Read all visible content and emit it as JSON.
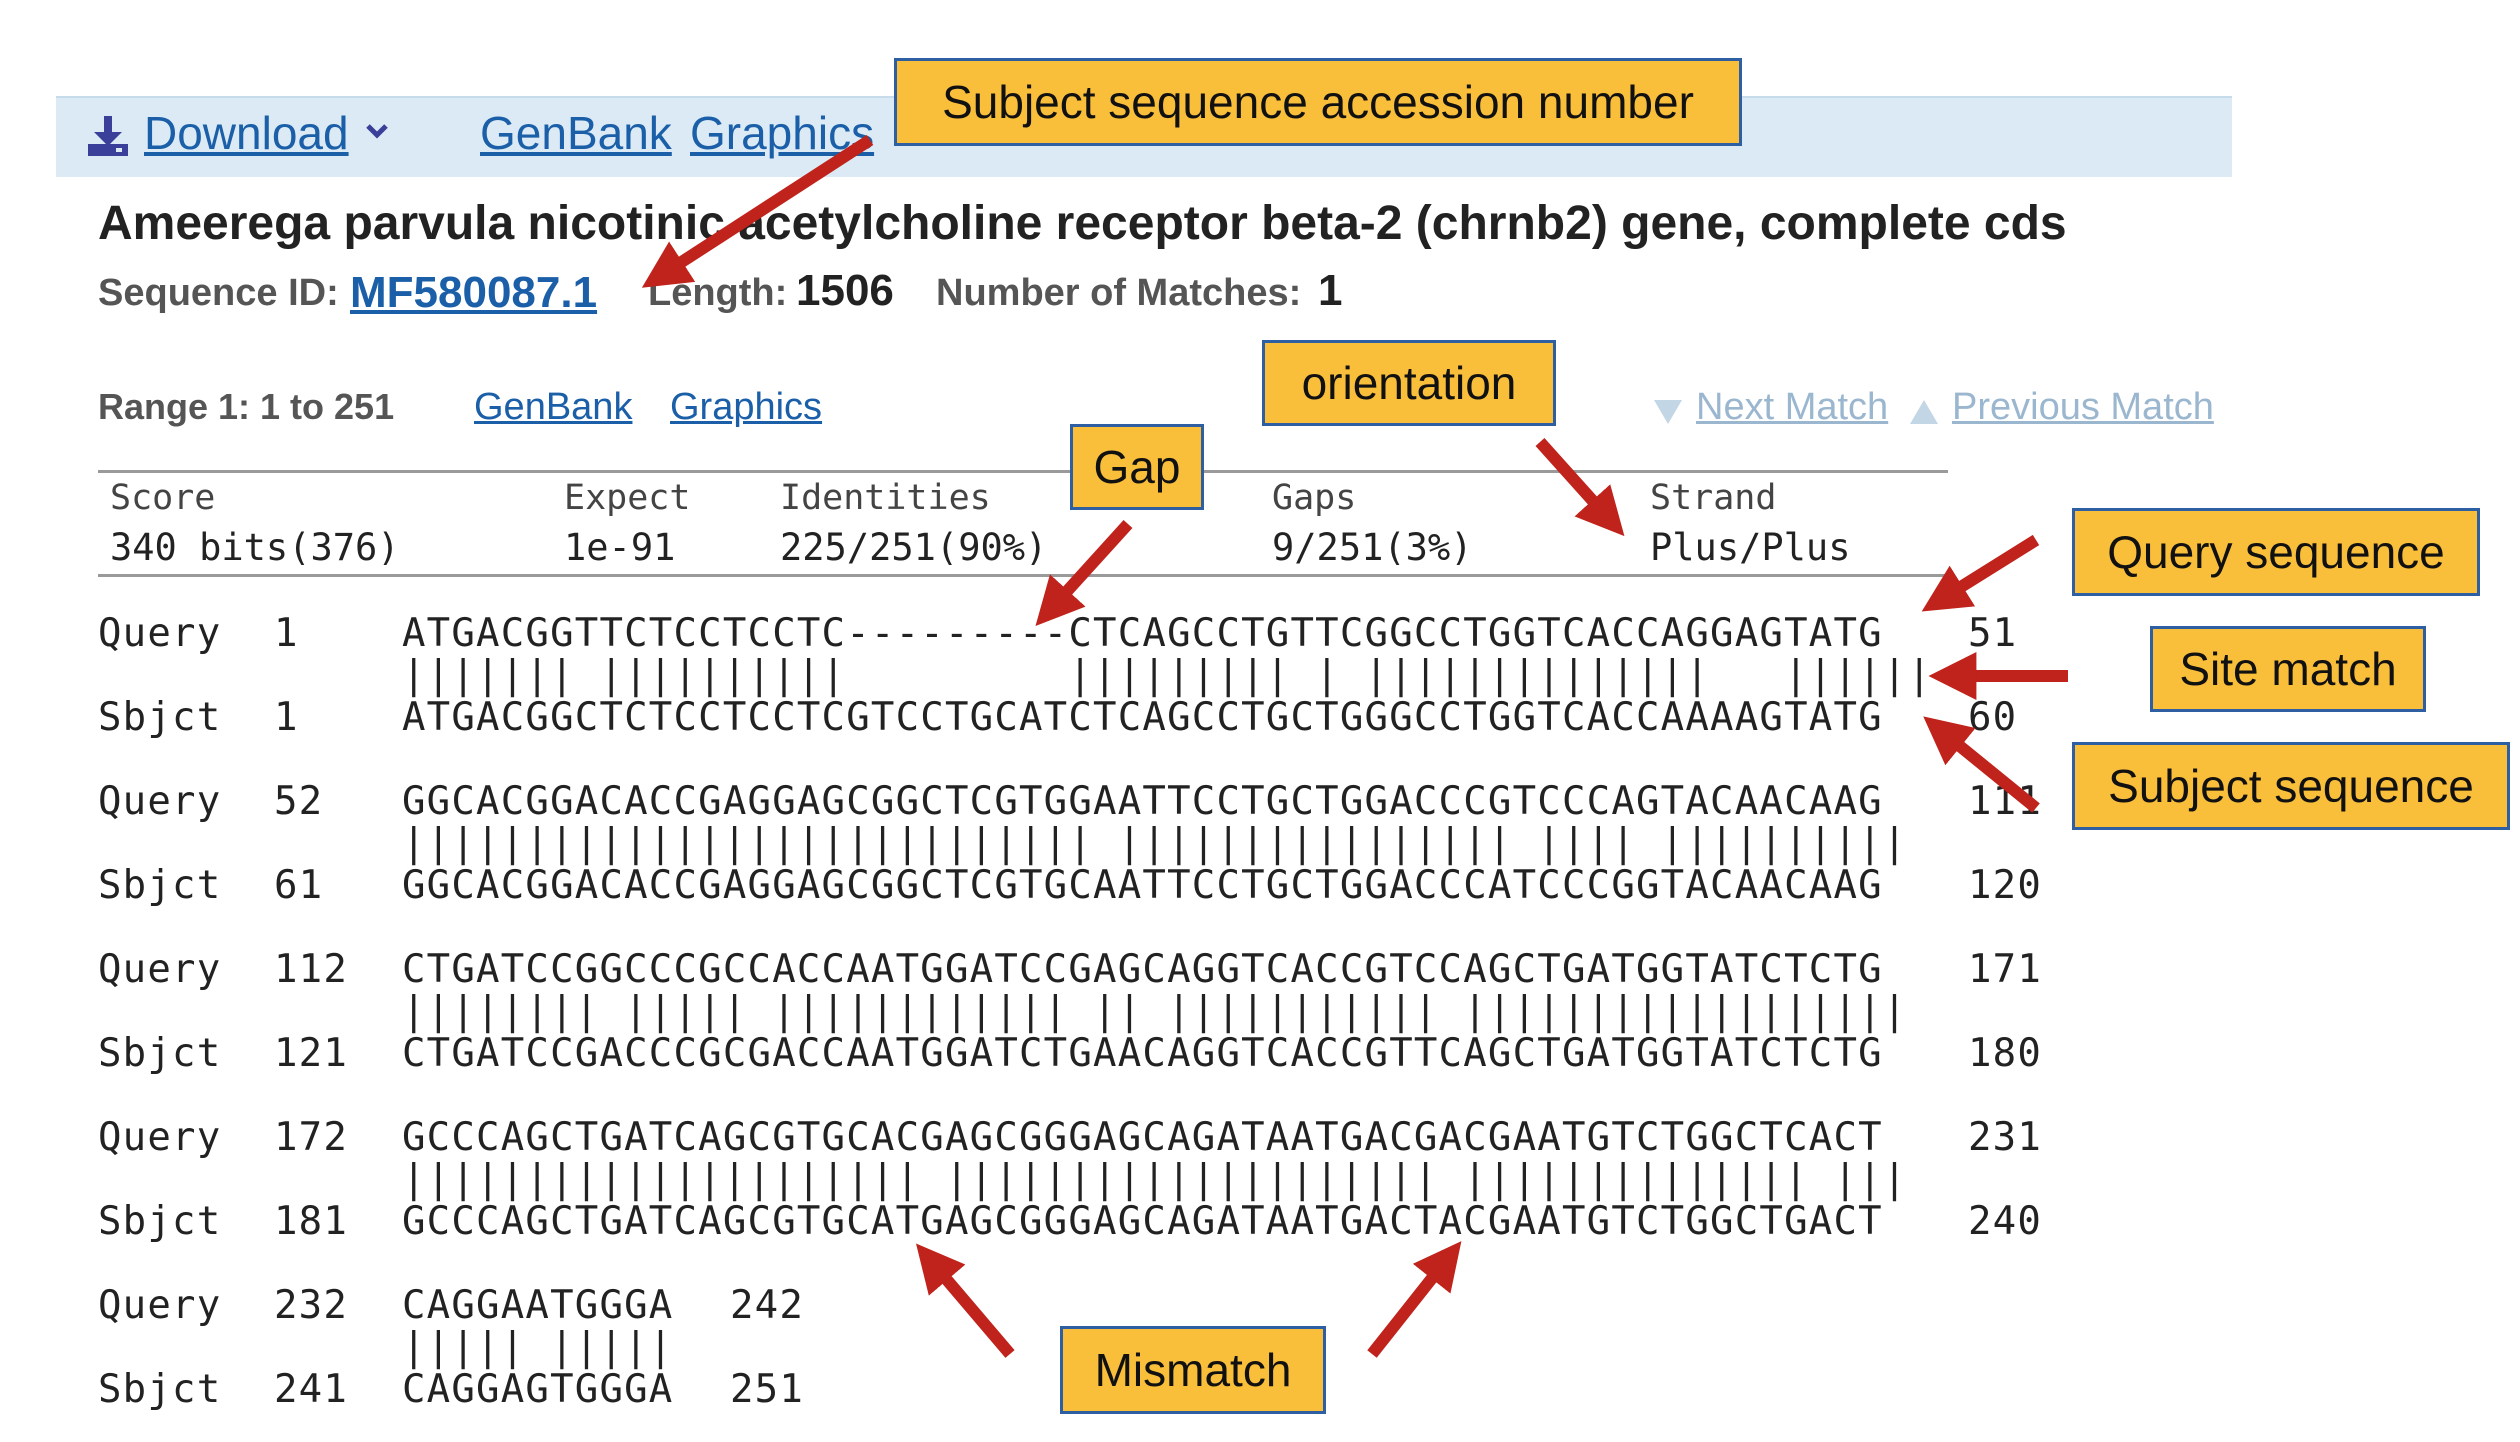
{
  "toolbar": {
    "download_label": "Download",
    "links": [
      "GenBank",
      "Graphics"
    ]
  },
  "record": {
    "title": "Ameerega parvula nicotinic acetylcholine receptor beta-2 (chrnb2) gene, complete cds",
    "seq_id_label": "Sequence ID:",
    "seq_id": "MF580087.1",
    "length_label": "Length:",
    "length": "1506",
    "matches_label": "Number of Matches:",
    "matches": "1"
  },
  "range": {
    "label": "Range 1: 1 to 251",
    "links": [
      "GenBank",
      "Graphics"
    ],
    "next": "Next Match",
    "previous": "Previous Match"
  },
  "stats": {
    "headers": [
      "Score",
      "Expect",
      "Identities",
      "Gaps",
      "Strand"
    ],
    "values": [
      "340 bits(376)",
      "1e-91",
      "225/251(90%)",
      "9/251(3%)",
      "Plus/Plus"
    ]
  },
  "alignment": [
    {
      "q_label": "Query",
      "q_start": "1",
      "q_seq": "ATGACGGTTCTCCTCCTC---------CTCAGCCTGTTCGGCCTGGTCACCAGGAGTATG",
      "q_end": "51",
      "match": "||||||| ||||||||||         ||||||||| | ||||||||||||||   ||||||",
      "s_label": "Sbjct",
      "s_start": "1",
      "s_seq": "ATGACGGCTCTCCTCCTCGTCCTGCATCTCAGCCTGCTGGGCCTGGTCACCAAAAGTATG",
      "s_end": "60"
    },
    {
      "q_label": "Query",
      "q_start": "52",
      "q_seq": "GGCACGGACACCGAGGAGCGGCTCGTGGAATTCCTGCTGGACCCGTCCCAGTACAACAAG",
      "q_end": "111",
      "match": "|||||||||||||||||||||||||||| |||||||||||||||| |||| ||||||||||",
      "s_label": "Sbjct",
      "s_start": "61",
      "s_seq": "GGCACGGACACCGAGGAGCGGCTCGTGCAATTCCTGCTGGACCCATCCCGGTACAACAAG",
      "s_end": "120"
    },
    {
      "q_label": "Query",
      "q_start": "112",
      "q_seq": "CTGATCCGGCCCGCCACCAATGGATCCGAGCAGGTCACCGTCCAGCTGATGGTATCTCTG",
      "q_end": "171",
      "match": "|||||||| ||||| |||||||||||| || ||||||||||| ||||||||||||||||||",
      "s_label": "Sbjct",
      "s_start": "121",
      "s_seq": "CTGATCCGACCCGCGACCAATGGATCTGAACAGGTCACCGTTCAGCTGATGGTATCTCTG",
      "s_end": "180"
    },
    {
      "q_label": "Query",
      "q_start": "172",
      "q_seq": "GCCCAGCTGATCAGCGTGCACGAGCGGGAGCAGATAATGACGACGAATGTCTGGCTCACT",
      "q_end": "231",
      "match": "||||||||||||||||||||| |||||||||||||||||||| |||||||||||||| |||",
      "s_label": "Sbjct",
      "s_start": "181",
      "s_seq": "GCCCAGCTGATCAGCGTGCATGAGCGGGAGCAGATAATGACTACGAATGTCTGGCTGACT",
      "s_end": "240"
    },
    {
      "q_label": "Query",
      "q_start": "232",
      "q_seq": "CAGGAATGGGA",
      "q_end": "242",
      "match": "||||| |||||",
      "s_label": "Sbjct",
      "s_start": "241",
      "s_seq": "CAGGAGTGGGA",
      "s_end": "251"
    }
  ],
  "annotations": {
    "accession": "Subject sequence accession number",
    "orientation": "orientation",
    "gap": "Gap",
    "query_sequence": "Query sequence",
    "site_match": "Site match",
    "subject_sequence": "Subject sequence",
    "mismatch": "Mismatch",
    "color_fill": "#f9be3a",
    "color_border": "#2f5fa3",
    "color_arrow": "#c0231b"
  }
}
